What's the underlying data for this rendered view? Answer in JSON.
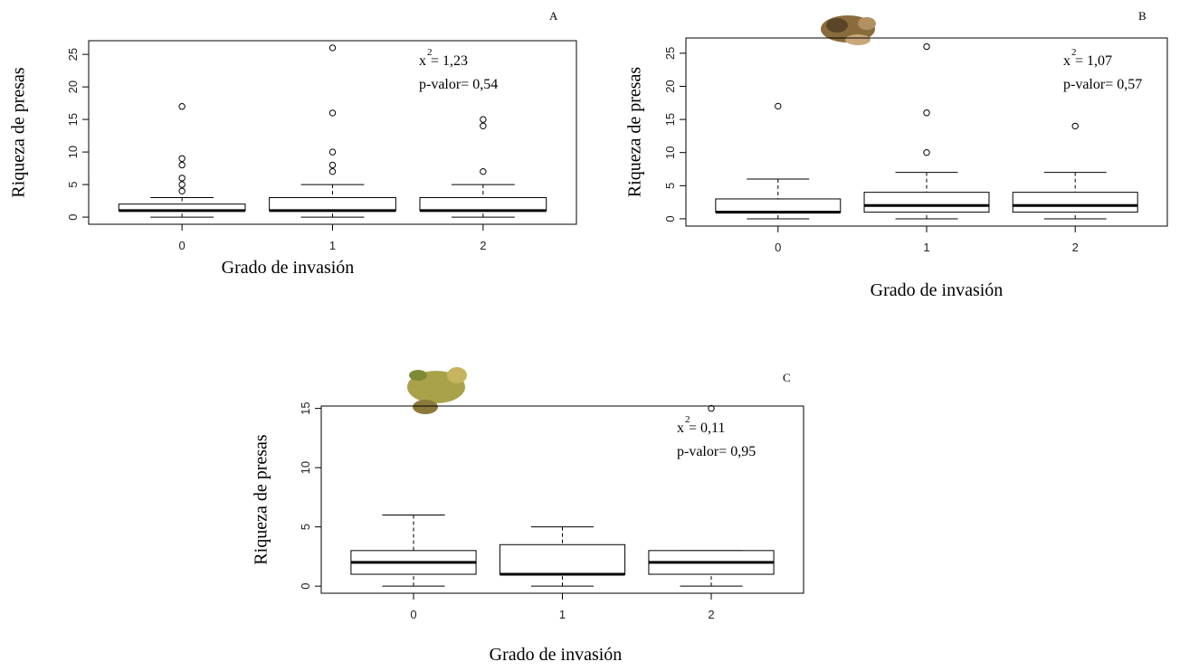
{
  "chart_data": [
    {
      "type": "box",
      "panel": "A",
      "ylabel": "Riqueza de presas",
      "xlabel": "Grado de invasión",
      "categories": [
        "0",
        "1",
        "2"
      ],
      "boxes": [
        {
          "min": 0,
          "q1": 1,
          "median": 1,
          "q3": 2,
          "max": 3,
          "outliers": [
            4,
            5,
            6,
            8,
            9,
            17
          ]
        },
        {
          "min": 0,
          "q1": 1,
          "median": 1,
          "q3": 3,
          "max": 5,
          "outliers": [
            7,
            8,
            10,
            16,
            26
          ]
        },
        {
          "min": 0,
          "q1": 1,
          "median": 1,
          "q3": 3,
          "max": 5,
          "outliers": [
            7,
            14,
            15
          ]
        }
      ],
      "ylim": [
        -1.1,
        27.1
      ],
      "yticks": [
        0,
        5,
        10,
        15,
        20,
        25
      ],
      "stat_symbol": "x",
      "stat_exponent": "2",
      "stat_value": "= 1,23",
      "p_value": "p-valor= 0,54"
    },
    {
      "type": "box",
      "panel": "B",
      "ylabel": "Riqueza de presas",
      "xlabel": "Grado de invasión",
      "categories": [
        "0",
        "1",
        "2"
      ],
      "boxes": [
        {
          "min": 0,
          "q1": 1,
          "median": 1,
          "q3": 3,
          "max": 6,
          "outliers": [
            17
          ]
        },
        {
          "min": 0,
          "q1": 1,
          "median": 2,
          "q3": 4,
          "max": 7,
          "outliers": [
            10,
            16,
            26
          ]
        },
        {
          "min": 0,
          "q1": 1,
          "median": 2,
          "q3": 4,
          "max": 7,
          "outliers": [
            14
          ]
        }
      ],
      "ylim": [
        -1.1,
        27.3
      ],
      "yticks": [
        0,
        5,
        10,
        15,
        20,
        25
      ],
      "stat_symbol": "x",
      "stat_exponent": "2",
      "stat_value": "= 1,07",
      "p_value": "p-valor= 0,57"
    },
    {
      "type": "box",
      "panel": "C",
      "ylabel": "Riqueza de presas",
      "xlabel": "Grado de invasión",
      "categories": [
        "0",
        "1",
        "2"
      ],
      "boxes": [
        {
          "min": 0,
          "q1": 1,
          "median": 2,
          "q3": 3,
          "max": 6,
          "outliers": []
        },
        {
          "min": 0,
          "q1": 1,
          "median": 1,
          "q3": 3.5,
          "max": 5,
          "outliers": []
        },
        {
          "min": 0,
          "q1": 1,
          "median": 2,
          "q3": 3,
          "max": 3,
          "outliers": [
            15
          ]
        }
      ],
      "ylim": [
        -0.6,
        15.2
      ],
      "yticks": [
        0,
        5,
        10,
        15
      ],
      "stat_symbol": "x",
      "stat_exponent": "2",
      "stat_value": "= 0,11",
      "p_value": "p-valor= 0,95"
    }
  ]
}
